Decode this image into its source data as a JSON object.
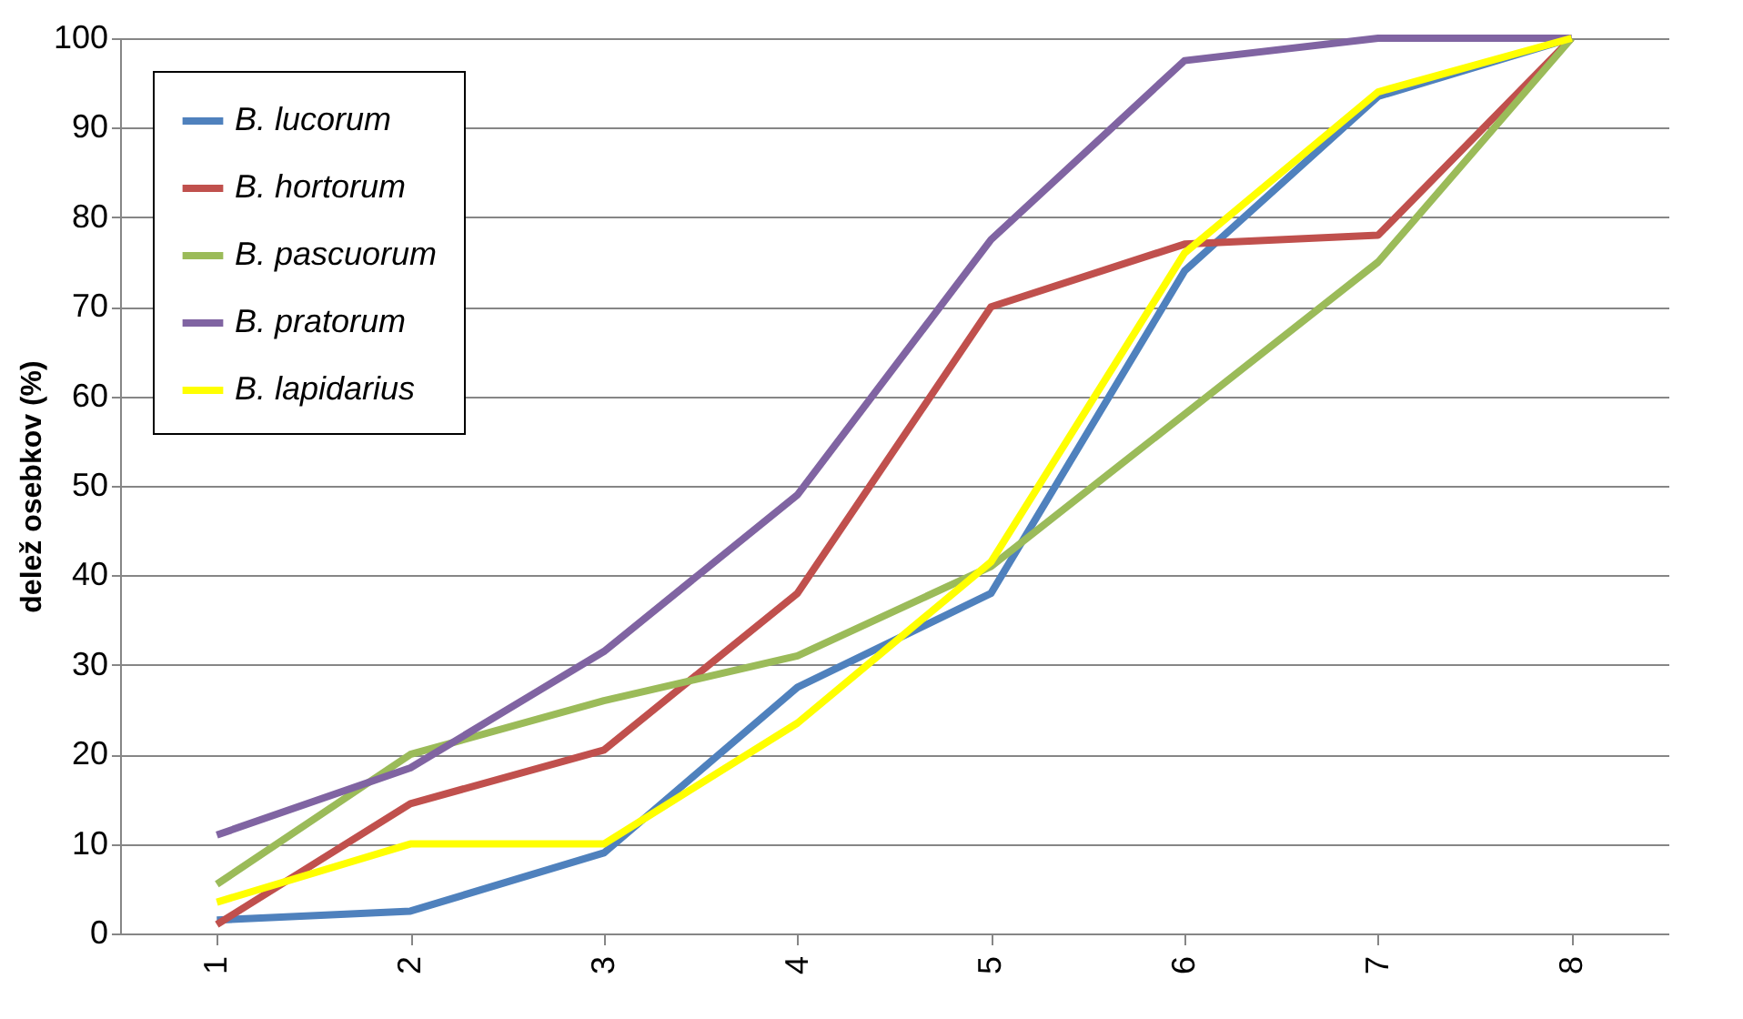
{
  "chart_data": {
    "type": "line",
    "ylabel": "delež osebkov (%)",
    "categories": [
      "1",
      "2",
      "3",
      "4",
      "5",
      "6",
      "7",
      "8"
    ],
    "series": [
      {
        "name": "B. lucorum",
        "color": "#4f81bd",
        "values": [
          1.5,
          2.5,
          9,
          27.5,
          38,
          74,
          93.5,
          100
        ]
      },
      {
        "name": "B. hortorum",
        "color": "#c0504d",
        "values": [
          1,
          14.5,
          20.5,
          38,
          70,
          77,
          78,
          100
        ]
      },
      {
        "name": "B. pascuorum",
        "color": "#9bbb59",
        "values": [
          5.5,
          20,
          26,
          31,
          41,
          58,
          75,
          100
        ]
      },
      {
        "name": "B. pratorum",
        "color": "#8064a2",
        "values": [
          11,
          18.5,
          31.5,
          49,
          77.5,
          97.5,
          100,
          100
        ]
      },
      {
        "name": "B. lapidarius",
        "color": "#ffff00",
        "values": [
          3.5,
          10,
          10,
          23.5,
          41.5,
          76,
          94,
          100
        ]
      }
    ],
    "ylim": [
      0,
      100
    ],
    "yticks": [
      0,
      10,
      20,
      30,
      40,
      50,
      60,
      70,
      80,
      90,
      100
    ],
    "grid": "y",
    "legend": "top left",
    "marker": "none",
    "line_style": "solid"
  }
}
